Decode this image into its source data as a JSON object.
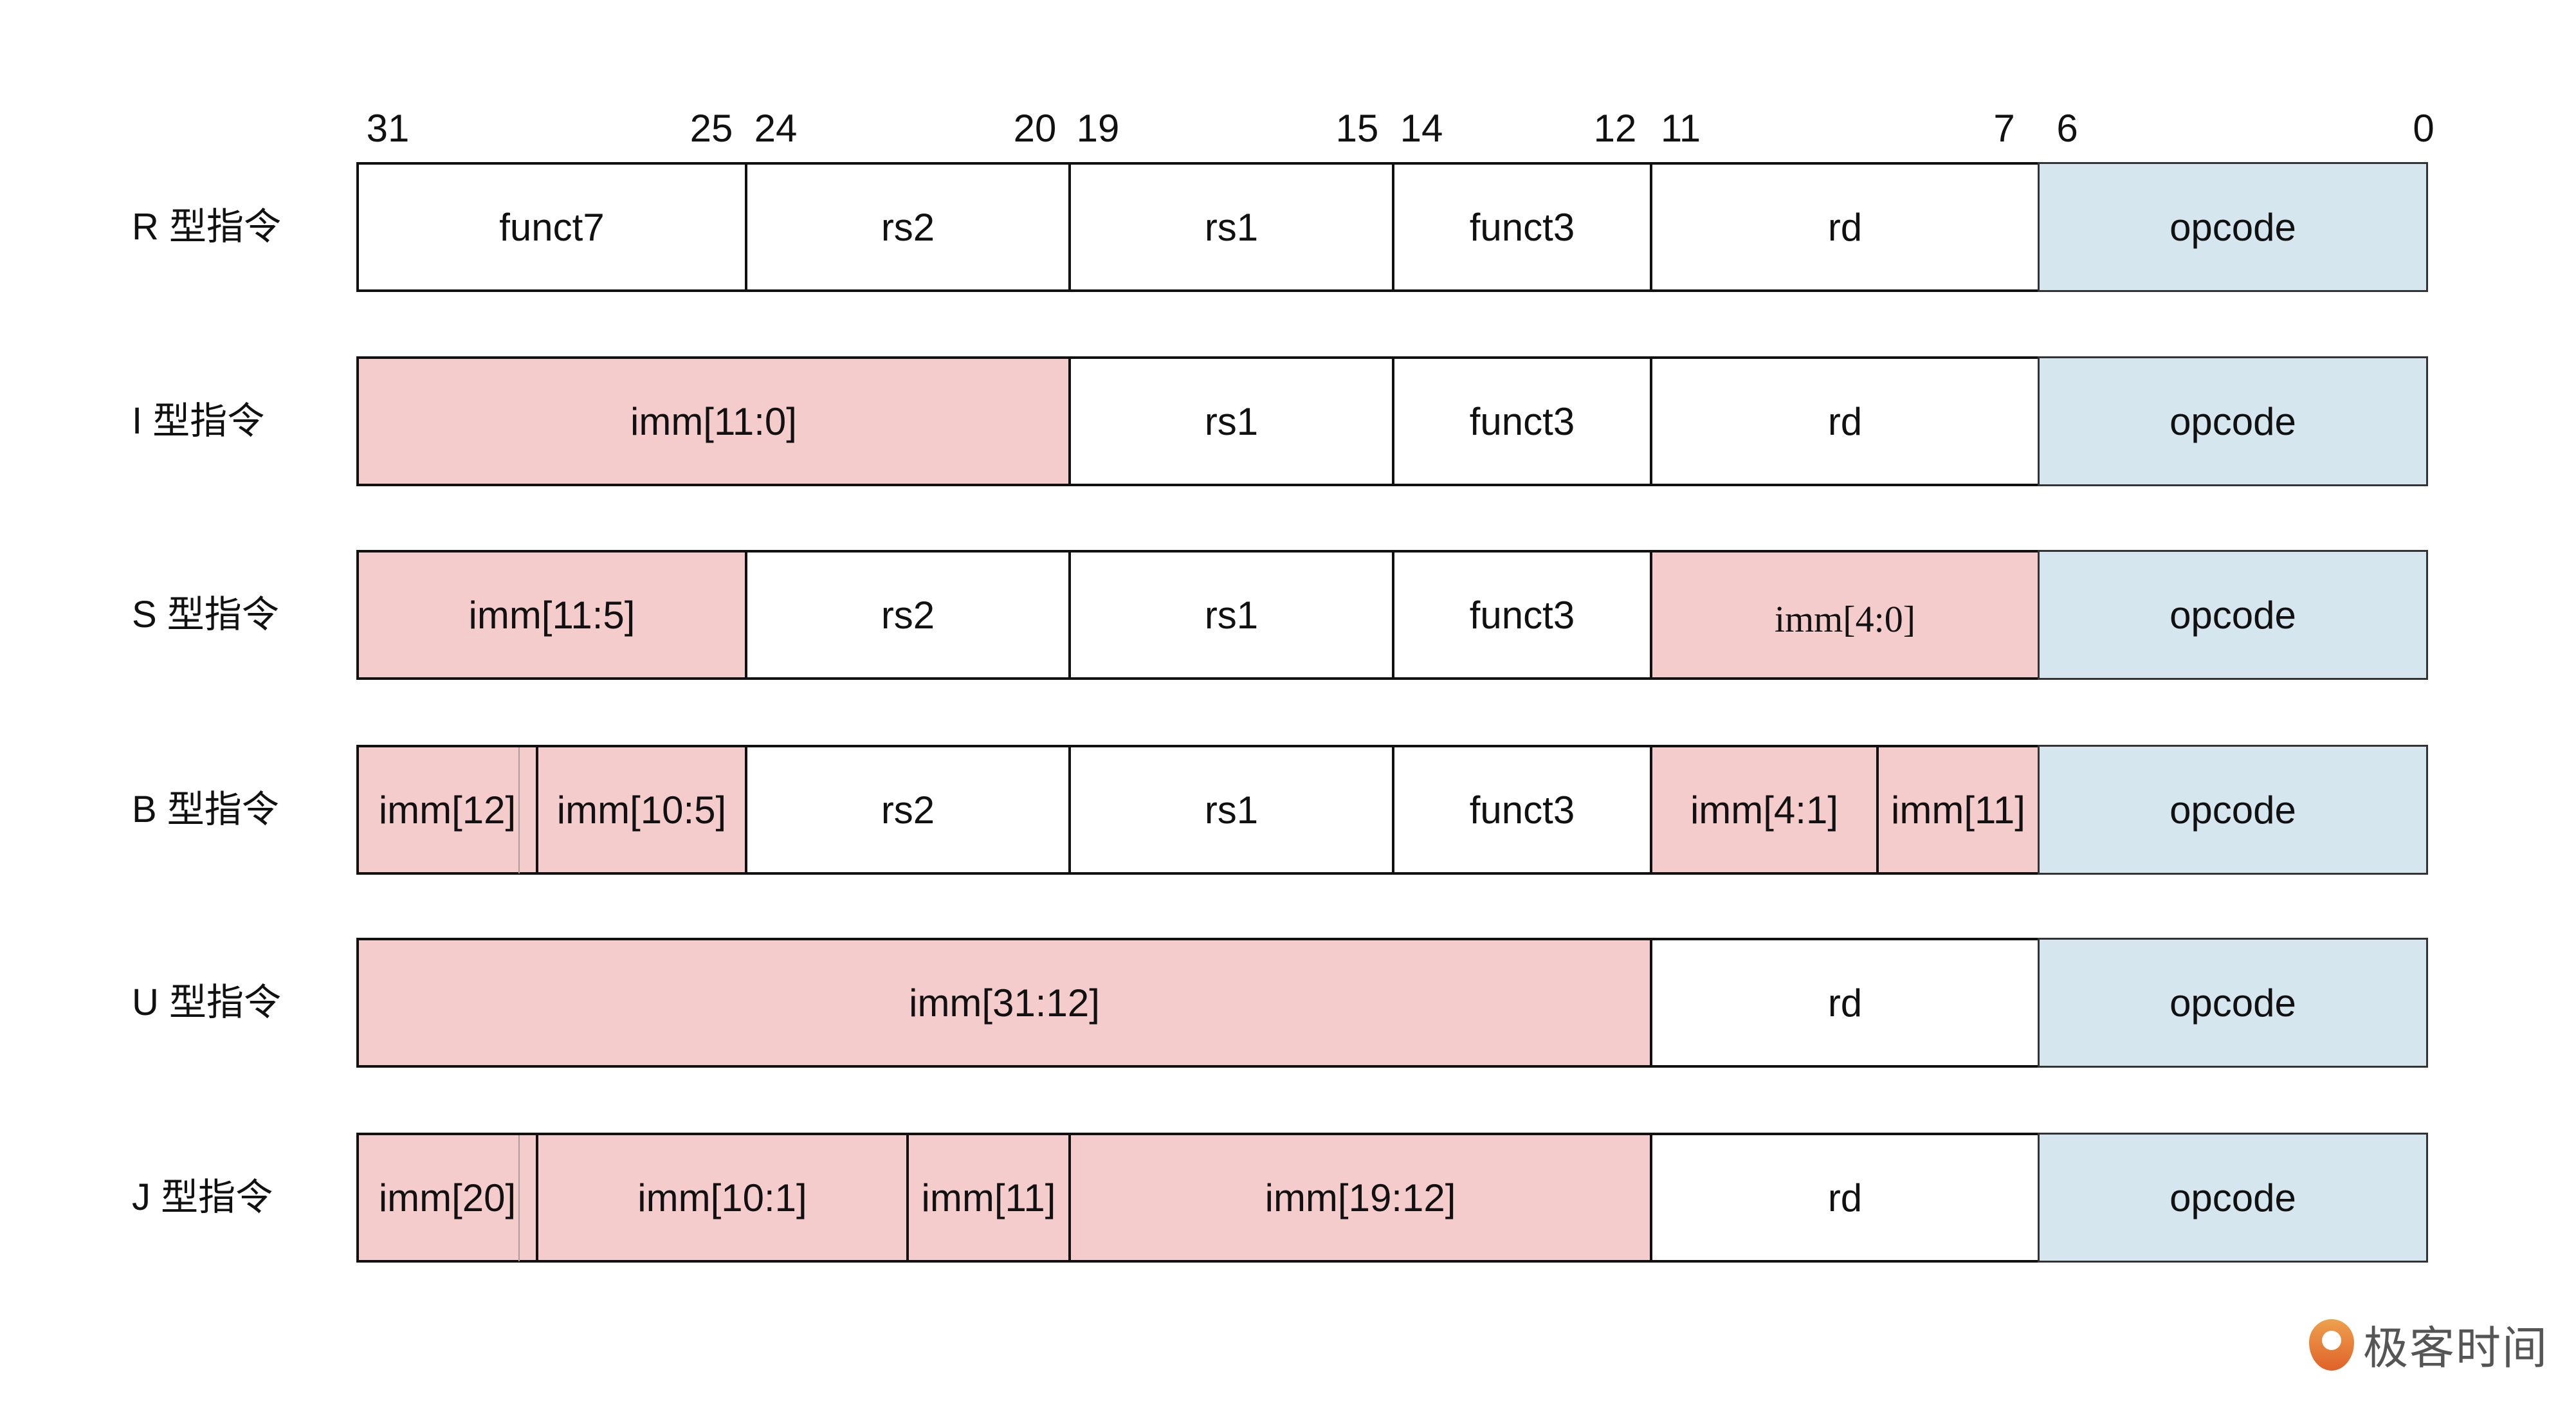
{
  "bit_labels": [
    "31",
    "25",
    "24",
    "20",
    "19",
    "15",
    "14",
    "12",
    "11",
    "7",
    "6",
    "0"
  ],
  "rows": [
    {
      "label": "R 型指令",
      "fields": [
        {
          "text": "funct7",
          "kind": "white"
        },
        {
          "text": "rs2",
          "kind": "white"
        },
        {
          "text": "rs1",
          "kind": "white"
        },
        {
          "text": "funct3",
          "kind": "white"
        },
        {
          "text": "rd",
          "kind": "white"
        },
        {
          "text": "opcode",
          "kind": "op"
        }
      ]
    },
    {
      "label": "I 型指令",
      "fields": [
        {
          "text": "imm[11:0]",
          "kind": "imm"
        },
        {
          "text": "rs1",
          "kind": "white"
        },
        {
          "text": "funct3",
          "kind": "white"
        },
        {
          "text": "rd",
          "kind": "white"
        },
        {
          "text": "opcode",
          "kind": "op"
        }
      ]
    },
    {
      "label": "S 型指令",
      "fields": [
        {
          "text": "imm[11:5]",
          "kind": "imm"
        },
        {
          "text": "rs2",
          "kind": "white"
        },
        {
          "text": "rs1",
          "kind": "white"
        },
        {
          "text": "funct3",
          "kind": "white"
        },
        {
          "text": "imm[4:0]",
          "kind": "imm"
        },
        {
          "text": "opcode",
          "kind": "op"
        }
      ]
    },
    {
      "label": "B 型指令",
      "fields": [
        {
          "text": "imm[12]",
          "kind": "imm"
        },
        {
          "text": "imm[10:5]",
          "kind": "imm"
        },
        {
          "text": "rs2",
          "kind": "white"
        },
        {
          "text": "rs1",
          "kind": "white"
        },
        {
          "text": "funct3",
          "kind": "white"
        },
        {
          "text": "imm[4:1]",
          "kind": "imm"
        },
        {
          "text": "imm[11]",
          "kind": "imm"
        },
        {
          "text": "opcode",
          "kind": "op"
        }
      ]
    },
    {
      "label": "U 型指令",
      "fields": [
        {
          "text": "imm[31:12]",
          "kind": "imm"
        },
        {
          "text": "rd",
          "kind": "white"
        },
        {
          "text": "opcode",
          "kind": "op"
        }
      ]
    },
    {
      "label": "J 型指令",
      "fields": [
        {
          "text": "imm[20]",
          "kind": "imm"
        },
        {
          "text": "imm[10:1]",
          "kind": "imm"
        },
        {
          "text": "imm[11]",
          "kind": "imm"
        },
        {
          "text": "imm[19:12]",
          "kind": "imm"
        },
        {
          "text": "rd",
          "kind": "white"
        },
        {
          "text": "opcode",
          "kind": "op"
        }
      ]
    }
  ],
  "colors": {
    "immediate": "#f4cccc",
    "opcode": "#d6e6ee",
    "border": "#111111"
  },
  "logo": {
    "text": "极客时间",
    "icon": "geektime-logo-icon"
  }
}
